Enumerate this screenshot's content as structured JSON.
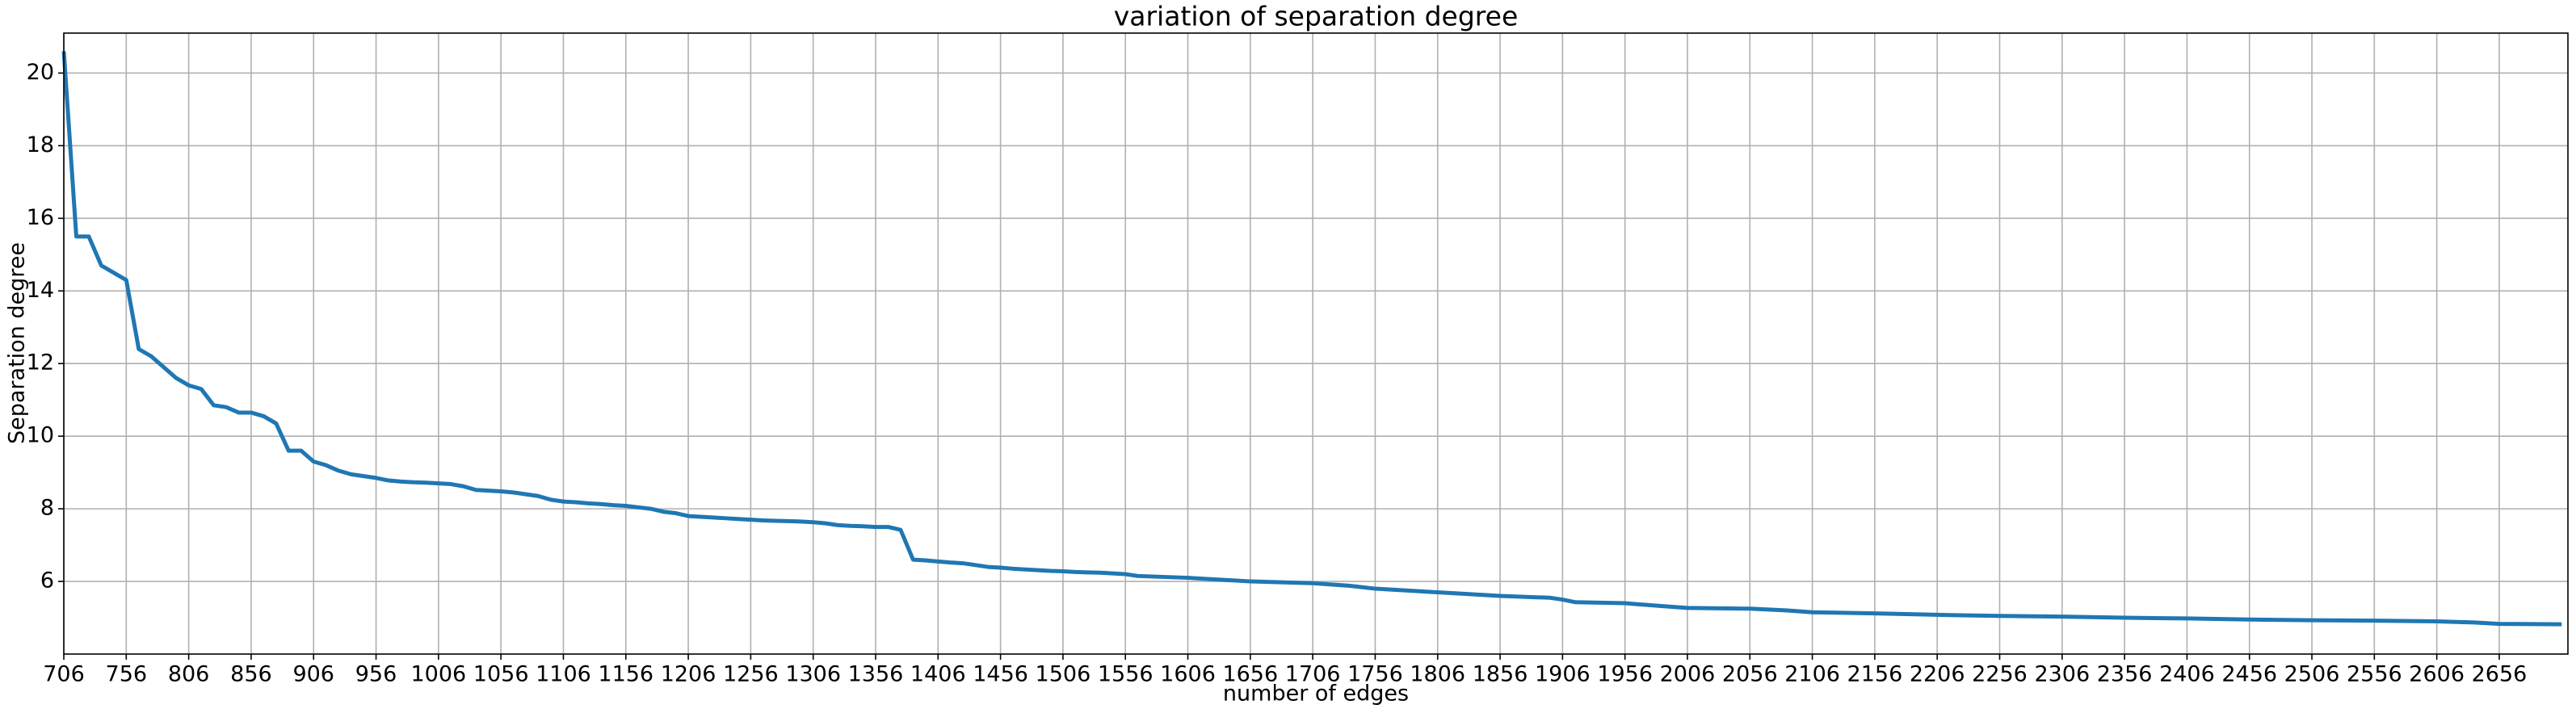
{
  "chart_data": {
    "type": "line",
    "title": "variation of separation degree",
    "xlabel": "number of edges",
    "ylabel": "Separation degree",
    "x": [
      706,
      716,
      726,
      736,
      746,
      756,
      766,
      776,
      786,
      796,
      806,
      816,
      826,
      836,
      846,
      856,
      866,
      876,
      886,
      896,
      906,
      916,
      926,
      936,
      946,
      956,
      966,
      976,
      986,
      996,
      1006,
      1016,
      1026,
      1036,
      1046,
      1056,
      1066,
      1076,
      1086,
      1096,
      1106,
      1116,
      1126,
      1136,
      1146,
      1156,
      1166,
      1176,
      1186,
      1196,
      1206,
      1216,
      1226,
      1236,
      1246,
      1256,
      1266,
      1276,
      1286,
      1296,
      1306,
      1316,
      1326,
      1336,
      1346,
      1356,
      1366,
      1376,
      1386,
      1396,
      1406,
      1416,
      1426,
      1436,
      1446,
      1456,
      1466,
      1476,
      1486,
      1496,
      1506,
      1516,
      1526,
      1536,
      1546,
      1556,
      1566,
      1606,
      1656,
      1706,
      1736,
      1756,
      1806,
      1856,
      1896,
      1906,
      1916,
      1956,
      1986,
      2006,
      2056,
      2086,
      2106,
      2156,
      2206,
      2256,
      2306,
      2356,
      2406,
      2456,
      2506,
      2556,
      2606,
      2636,
      2656,
      2706
    ],
    "series": [
      {
        "name": "separation degree",
        "color": "#1f77b4",
        "values": [
          20.6,
          15.5,
          15.5,
          14.7,
          14.5,
          14.3,
          12.4,
          12.2,
          11.9,
          11.6,
          11.4,
          11.3,
          10.85,
          10.8,
          10.65,
          10.65,
          10.55,
          10.35,
          9.6,
          9.6,
          9.3,
          9.2,
          9.05,
          8.95,
          8.9,
          8.85,
          8.78,
          8.75,
          8.73,
          8.72,
          8.7,
          8.68,
          8.62,
          8.52,
          8.5,
          8.48,
          8.45,
          8.4,
          8.35,
          8.25,
          8.2,
          8.18,
          8.15,
          8.13,
          8.1,
          8.08,
          8.04,
          8.0,
          7.92,
          7.88,
          7.8,
          7.78,
          7.76,
          7.74,
          7.72,
          7.7,
          7.68,
          7.67,
          7.66,
          7.65,
          7.63,
          7.6,
          7.55,
          7.53,
          7.52,
          7.5,
          7.5,
          7.42,
          6.6,
          6.58,
          6.55,
          6.52,
          6.5,
          6.45,
          6.4,
          6.38,
          6.35,
          6.33,
          6.31,
          6.29,
          6.28,
          6.26,
          6.25,
          6.24,
          6.22,
          6.2,
          6.15,
          6.1,
          6.0,
          5.95,
          5.88,
          5.8,
          5.7,
          5.6,
          5.55,
          5.5,
          5.43,
          5.4,
          5.32,
          5.27,
          5.25,
          5.2,
          5.15,
          5.12,
          5.08,
          5.05,
          5.03,
          5.0,
          4.98,
          4.95,
          4.93,
          4.92,
          4.9,
          4.87,
          4.83,
          4.82
        ]
      }
    ],
    "xlim": [
      706,
      2711
    ],
    "ylim": [
      4.0,
      21.1
    ],
    "xticks": [
      706,
      756,
      806,
      856,
      906,
      956,
      1006,
      1056,
      1106,
      1156,
      1206,
      1256,
      1306,
      1356,
      1406,
      1456,
      1506,
      1556,
      1606,
      1656,
      1706,
      1756,
      1806,
      1856,
      1906,
      1956,
      2006,
      2056,
      2106,
      2156,
      2206,
      2256,
      2306,
      2356,
      2406,
      2456,
      2506,
      2556,
      2606,
      2656
    ],
    "yticks": [
      6,
      8,
      10,
      12,
      14,
      16,
      18,
      20
    ],
    "grid": true
  }
}
